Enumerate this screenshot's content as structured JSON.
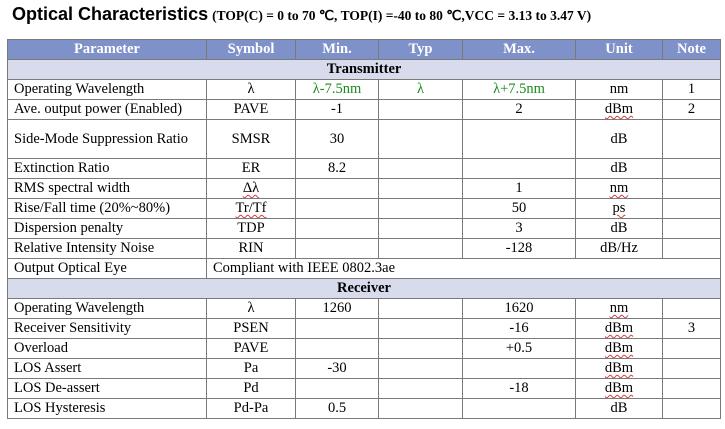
{
  "heading": {
    "title": "Optical Characteristics",
    "conditions": "(TOP(C) = 0 to 70 ℃, TOP(I) =-40 to 80 ℃,VCC = 3.13 to 3.47 V)"
  },
  "columns": [
    "Parameter",
    "Symbol",
    "Min.",
    "Typ",
    "Max.",
    "Unit",
    "Note"
  ],
  "sections": {
    "transmitter": "Transmitter",
    "receiver": "Receiver"
  },
  "transmitter_rows": [
    {
      "parameter": "Operating Wavelength",
      "symbol": "λ",
      "min": "λ-7.5nm",
      "typ": "λ",
      "max": "λ+7.5nm",
      "unit": "nm",
      "note": "1"
    },
    {
      "parameter": "Ave. output power (Enabled)",
      "symbol": "PAVE",
      "min": "-1",
      "typ": "",
      "max": "2",
      "unit": "dBm",
      "note": "2"
    },
    {
      "parameter": "Side-Mode Suppression Ratio",
      "symbol": "SMSR",
      "min": "30",
      "typ": "",
      "max": "",
      "unit": "dB",
      "note": ""
    },
    {
      "parameter": "Extinction Ratio",
      "symbol": "ER",
      "min": "8.2",
      "typ": "",
      "max": "",
      "unit": "dB",
      "note": ""
    },
    {
      "parameter": "RMS spectral width",
      "symbol": "Δλ",
      "min": "",
      "typ": "",
      "max": "1",
      "unit": "nm",
      "note": ""
    },
    {
      "parameter": "Rise/Fall time (20%~80%)",
      "symbol": "Tr/Tf",
      "min": "",
      "typ": "",
      "max": "50",
      "unit": "ps",
      "note": ""
    },
    {
      "parameter": "Dispersion penalty",
      "symbol": "TDP",
      "min": "",
      "typ": "",
      "max": "3",
      "unit": "dB",
      "note": ""
    },
    {
      "parameter": "Relative Intensity Noise",
      "symbol": "RIN",
      "min": "",
      "typ": "",
      "max": "-128",
      "unit": "dB/Hz",
      "note": ""
    },
    {
      "parameter": "Output Optical Eye",
      "symbol": "Compliant with IEEE 0802.3ae"
    }
  ],
  "receiver_rows": [
    {
      "parameter": "Operating Wavelength",
      "symbol": "λ",
      "min": "1260",
      "typ": "",
      "max": "1620",
      "unit": "nm",
      "note": ""
    },
    {
      "parameter": "Receiver Sensitivity",
      "symbol": "PSEN",
      "min": "",
      "typ": "",
      "max": "-16",
      "unit": "dBm",
      "note": "3"
    },
    {
      "parameter": "Overload",
      "symbol": "PAVE",
      "min": "",
      "typ": "",
      "max": "+0.5",
      "unit": "dBm",
      "note": ""
    },
    {
      "parameter": "LOS Assert",
      "symbol": "Pa",
      "min": "-30",
      "typ": "",
      "max": "",
      "unit": "dBm",
      "note": ""
    },
    {
      "parameter": "LOS De-assert",
      "symbol": "Pd",
      "min": "",
      "typ": "",
      "max": "-18",
      "unit": "dBm",
      "note": ""
    },
    {
      "parameter": "LOS Hysteresis",
      "symbol": "Pd-Pa",
      "min": "0.5",
      "typ": "",
      "max": "",
      "unit": "dB",
      "note": ""
    }
  ],
  "colors": {
    "header_bg": "#7f91c9",
    "section_bg": "#d7dbec",
    "green_text": "#1a8c1a",
    "border": "#7a7a7a"
  }
}
